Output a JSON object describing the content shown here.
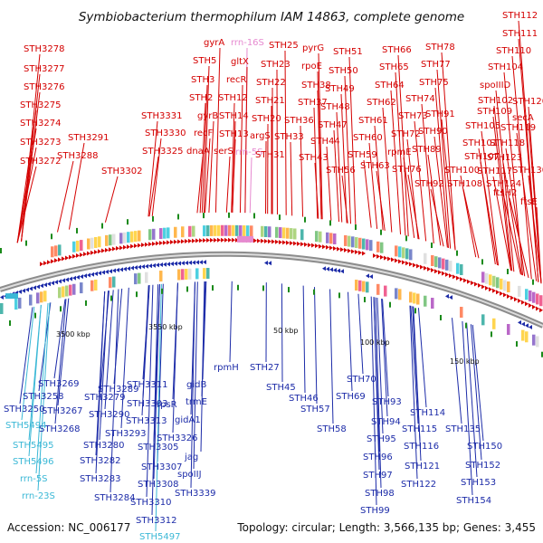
{
  "title": "Symbiobacterium thermophilum IAM 14863, complete genome",
  "accession": "Accession: NC_006177",
  "summary": "Topology: circular; Length: 3,566,135 bp; Genes: 3,455",
  "colors": {
    "forward": "#d40000",
    "reverse": "#1c2ba8",
    "rrna_reverse": "#3bb8d6",
    "rrna_forward": "#e68ad0",
    "backbone": "#777777",
    "tick": "#1a8a1a"
  },
  "ticks": [
    "3500 kbp",
    "3550 kbp",
    "50 kbp",
    "100 kbp",
    "150 kbp"
  ],
  "top_labels": [
    "STH3278",
    "STH3277",
    "STH3276",
    "STH3275",
    "STH3274",
    "STH3273",
    "STH3272",
    "STH3291",
    "STH3288",
    "STH3302",
    "STH3331",
    "STH3330",
    "STH3325",
    "gyrA",
    "STH5",
    "STH3",
    "STH2",
    "gyrB",
    "recF",
    "dnaA",
    "rrn-16S",
    "gltX",
    "recR",
    "STH12",
    "STH14",
    "STH13",
    "serS",
    "rrn-5S",
    "STH25",
    "STH23",
    "STH22",
    "STH21",
    "STH20",
    "argS",
    "STH31",
    "pyrG",
    "rpoE",
    "STH38",
    "STH37",
    "STH36",
    "STH33",
    "STH51",
    "STH50",
    "STH49",
    "STH48",
    "STH47",
    "STH44",
    "STH43",
    "STH56",
    "STH66",
    "STH65",
    "STH64",
    "STH62",
    "STH61",
    "STH60",
    "STH59",
    "STH63",
    "STH78",
    "STH77",
    "STH75",
    "STH74",
    "STH73",
    "STH72",
    "rpmE",
    "STH76",
    "STH112",
    "STH111",
    "STH110",
    "STH104",
    "spoIIID",
    "STH102",
    "STH109",
    "STH105",
    "STH91",
    "STH90",
    "STH89",
    "STH92",
    "STH101",
    "STH107",
    "STH100",
    "STH108",
    "STH120",
    "secA",
    "STH119",
    "STH118",
    "STH123",
    "STH117",
    "STH124",
    "ftsH2",
    "STH130",
    "ftsE"
  ],
  "bottom_labels": [
    "STH3269",
    "STH3258",
    "STH3250",
    "STH3267",
    "STH3268",
    "STH5494",
    "STH5495",
    "STH5496",
    "rrn-5S",
    "rrn-23S",
    "STH3289",
    "STH3279",
    "STH3290",
    "STH3293",
    "STH3280",
    "STH3282",
    "STH3283",
    "STH3284",
    "STH3311",
    "STH3303",
    "STH3313",
    "STH3305",
    "STH3307",
    "STH3308",
    "STH3310",
    "STH3312",
    "STH5497",
    "rpsR",
    "STH3326",
    "gidB",
    "trmE",
    "gidA1",
    "jag",
    "spoIIJ",
    "STH3339",
    "rpmH",
    "STH27",
    "STH45",
    "STH46",
    "STH57",
    "STH58",
    "STH70",
    "STH69",
    "STH93",
    "STH94",
    "STH95",
    "STH96",
    "STH97",
    "STH98",
    "STH99",
    "STH114",
    "STH115",
    "STH116",
    "STH121",
    "STH122",
    "STH135",
    "STH150",
    "STH152",
    "STH153",
    "STH154"
  ]
}
